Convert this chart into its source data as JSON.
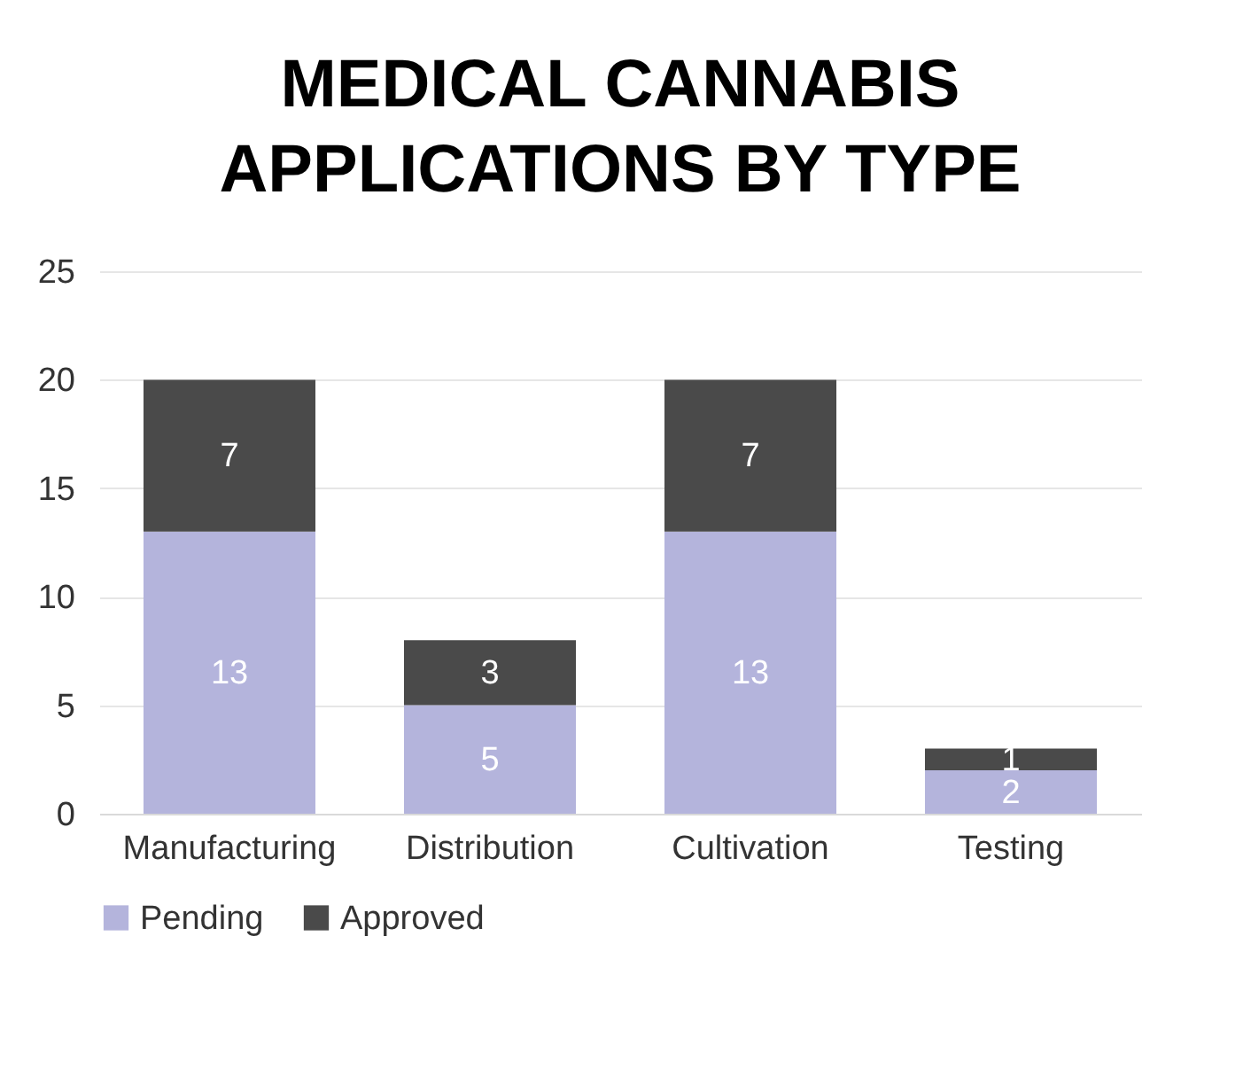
{
  "chart_data": {
    "type": "bar",
    "title": "MEDICAL CANNABIS APPLICATIONS BY TYPE",
    "categories": [
      "Manufacturing",
      "Distribution",
      "Cultivation",
      "Testing"
    ],
    "series": [
      {
        "name": "Pending",
        "color": "#b4b4dc",
        "values": [
          13,
          5,
          13,
          2
        ]
      },
      {
        "name": "Approved",
        "color": "#4a4a4a",
        "values": [
          7,
          3,
          7,
          1
        ]
      }
    ],
    "stacked": true,
    "ylim": [
      0,
      25
    ],
    "yticks": [
      0,
      5,
      10,
      15,
      20,
      25
    ],
    "grid": "y",
    "legend": "bottom",
    "data_labels": true
  }
}
